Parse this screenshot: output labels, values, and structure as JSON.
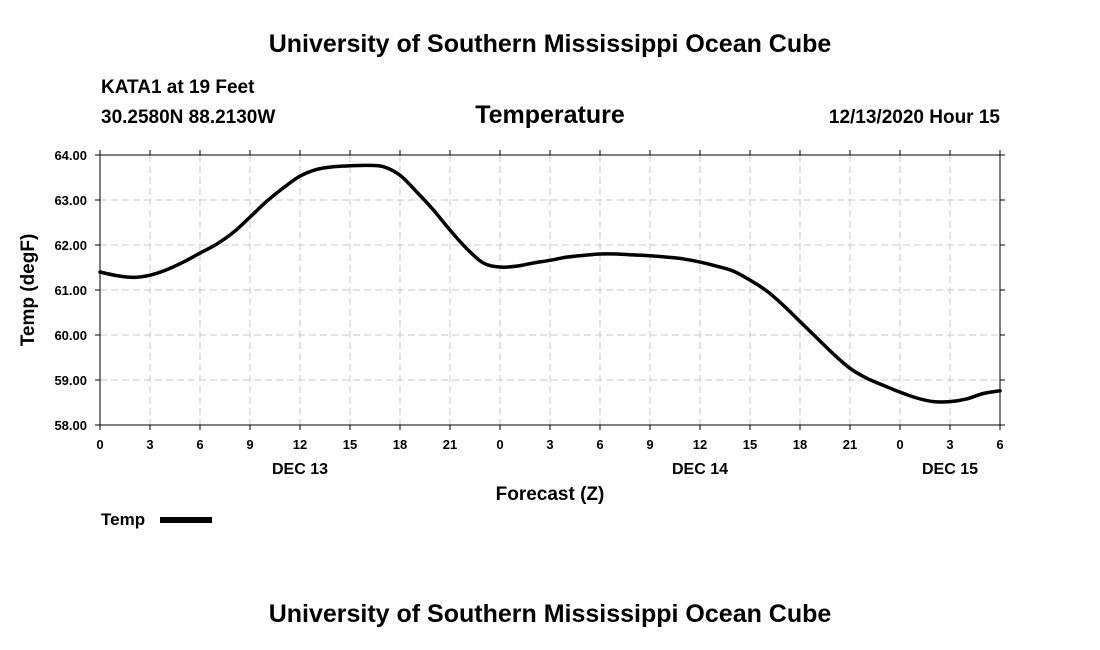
{
  "header": {
    "top_title": "University of Southern Mississippi Ocean Cube",
    "station": "KATA1 at 19 Feet",
    "coords": "30.2580N 88.2130W",
    "variable": "Temperature",
    "datetime": "12/13/2020 Hour 15",
    "bottom_title": "University of Southern Mississippi Ocean Cube"
  },
  "chart_data": {
    "type": "line",
    "title": "Temperature",
    "xlabel": "Forecast (Z)",
    "ylabel": "Temp (degF)",
    "ylim": [
      58.0,
      64.0
    ],
    "xlim": [
      0,
      54
    ],
    "yticks": [
      "58.00",
      "59.00",
      "60.00",
      "61.00",
      "62.00",
      "63.00",
      "64.00"
    ],
    "xticks": [
      "0",
      "3",
      "6",
      "9",
      "12",
      "15",
      "18",
      "21",
      "0",
      "3",
      "6",
      "9",
      "12",
      "15",
      "18",
      "21",
      "0",
      "3",
      "6"
    ],
    "day_labels": [
      {
        "label": "DEC 13",
        "hour": 12
      },
      {
        "label": "DEC 14",
        "hour": 36
      },
      {
        "label": "DEC 15",
        "hour": 51
      }
    ],
    "grid": true,
    "legend": "bottom-left",
    "series": [
      {
        "name": "Temp",
        "color": "#000000",
        "x": [
          0,
          1,
          2,
          3,
          4,
          5,
          6,
          7,
          8,
          9,
          10,
          11,
          12,
          13,
          14,
          15,
          16,
          17,
          18,
          19,
          20,
          21,
          22,
          23,
          24,
          25,
          26,
          27,
          28,
          29,
          30,
          31,
          32,
          33,
          34,
          35,
          36,
          37,
          38,
          39,
          40,
          41,
          42,
          43,
          44,
          45,
          46,
          47,
          48,
          49,
          50,
          51,
          52,
          53,
          54
        ],
        "values": [
          61.4,
          61.32,
          61.28,
          61.33,
          61.45,
          61.62,
          61.82,
          62.02,
          62.28,
          62.62,
          62.97,
          63.27,
          63.53,
          63.68,
          63.74,
          63.76,
          63.77,
          63.74,
          63.55,
          63.18,
          62.78,
          62.33,
          61.92,
          61.6,
          61.51,
          61.53,
          61.6,
          61.66,
          61.73,
          61.77,
          61.8,
          61.8,
          61.78,
          61.76,
          61.73,
          61.69,
          61.62,
          61.53,
          61.42,
          61.22,
          60.98,
          60.66,
          60.3,
          59.94,
          59.58,
          59.26,
          59.04,
          58.88,
          58.73,
          58.6,
          58.52,
          58.52,
          58.58,
          58.7,
          58.76
        ]
      }
    ]
  }
}
